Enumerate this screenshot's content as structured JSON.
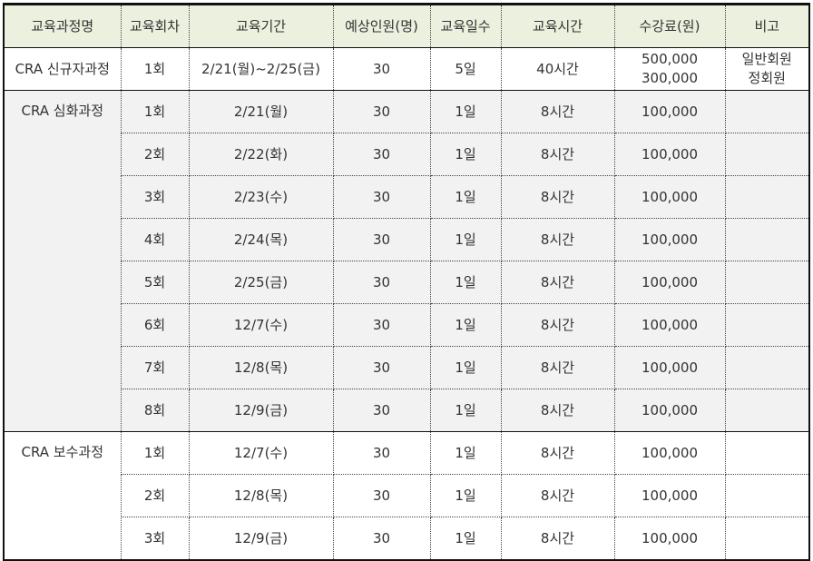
{
  "headers": [
    "교육과정명",
    "교육회차",
    "교육기간",
    "예상인원(명)",
    "교육일수",
    "교육시간",
    "수강료(원)",
    "비고"
  ],
  "sections": [
    {
      "name": "CRA 신규자과정",
      "rows": [
        {
          "round": "1회",
          "period": "2/21(월)~2/25(금)",
          "count": "30",
          "days": "5일",
          "hours": "40시간",
          "fee": [
            "500,000",
            "300,000"
          ],
          "note": [
            "일반회원",
            "정회원"
          ]
        }
      ]
    },
    {
      "name": "CRA 심화과정",
      "rows": [
        {
          "round": "1회",
          "period": "2/21(월)",
          "count": "30",
          "days": "1일",
          "hours": "8시간",
          "fee": [
            "100,000"
          ]
        },
        {
          "round": "2회",
          "period": "2/22(화)",
          "count": "30",
          "days": "1일",
          "hours": "8시간",
          "fee": [
            "100,000"
          ]
        },
        {
          "round": "3회",
          "period": "2/23(수)",
          "count": "30",
          "days": "1일",
          "hours": "8시간",
          "fee": [
            "100,000"
          ]
        },
        {
          "round": "4회",
          "period": "2/24(목)",
          "count": "30",
          "days": "1일",
          "hours": "8시간",
          "fee": [
            "100,000"
          ]
        },
        {
          "round": "5회",
          "period": "2/25(금)",
          "count": "30",
          "days": "1일",
          "hours": "8시간",
          "fee": [
            "100,000"
          ]
        },
        {
          "round": "6회",
          "period": "12/7(수)",
          "count": "30",
          "days": "1일",
          "hours": "8시간",
          "fee": [
            "100,000"
          ]
        },
        {
          "round": "7회",
          "period": "12/8(목)",
          "count": "30",
          "days": "1일",
          "hours": "8시간",
          "fee": [
            "100,000"
          ]
        },
        {
          "round": "8회",
          "period": "12/9(금)",
          "count": "30",
          "days": "1일",
          "hours": "8시간",
          "fee": [
            "100,000"
          ]
        }
      ]
    },
    {
      "name": "CRA 보수과정",
      "rows": [
        {
          "round": "1회",
          "period": "12/7(수)",
          "count": "30",
          "days": "1일",
          "hours": "8시간",
          "fee": [
            "100,000"
          ]
        },
        {
          "round": "2회",
          "period": "12/8(목)",
          "count": "30",
          "days": "1일",
          "hours": "8시간",
          "fee": [
            "100,000"
          ]
        },
        {
          "round": "3회",
          "period": "12/9(금)",
          "count": "30",
          "days": "1일",
          "hours": "8시간",
          "fee": [
            "100,000"
          ]
        }
      ]
    }
  ],
  "colors": {
    "header_bg": "#ebf1de",
    "alt_section_bg": "#f2f2f2"
  }
}
